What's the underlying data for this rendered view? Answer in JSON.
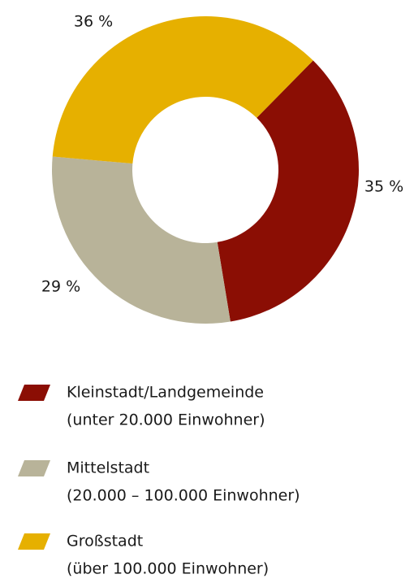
{
  "chart_data": {
    "type": "donut",
    "categories": [
      "Kleinstadt/Landgemeinde",
      "Mittelstadt",
      "Großstadt"
    ],
    "descriptions": [
      "(unter 20.000 Einwohner)",
      "(20.000 – 100.000 Einwohner)",
      "(über 100.000 Einwohner)"
    ],
    "values": [
      35,
      29,
      36
    ],
    "value_labels": [
      "35 %",
      "29 %",
      "36 %"
    ],
    "colors": [
      "#8b0e04",
      "#b8b399",
      "#e6b000"
    ]
  }
}
